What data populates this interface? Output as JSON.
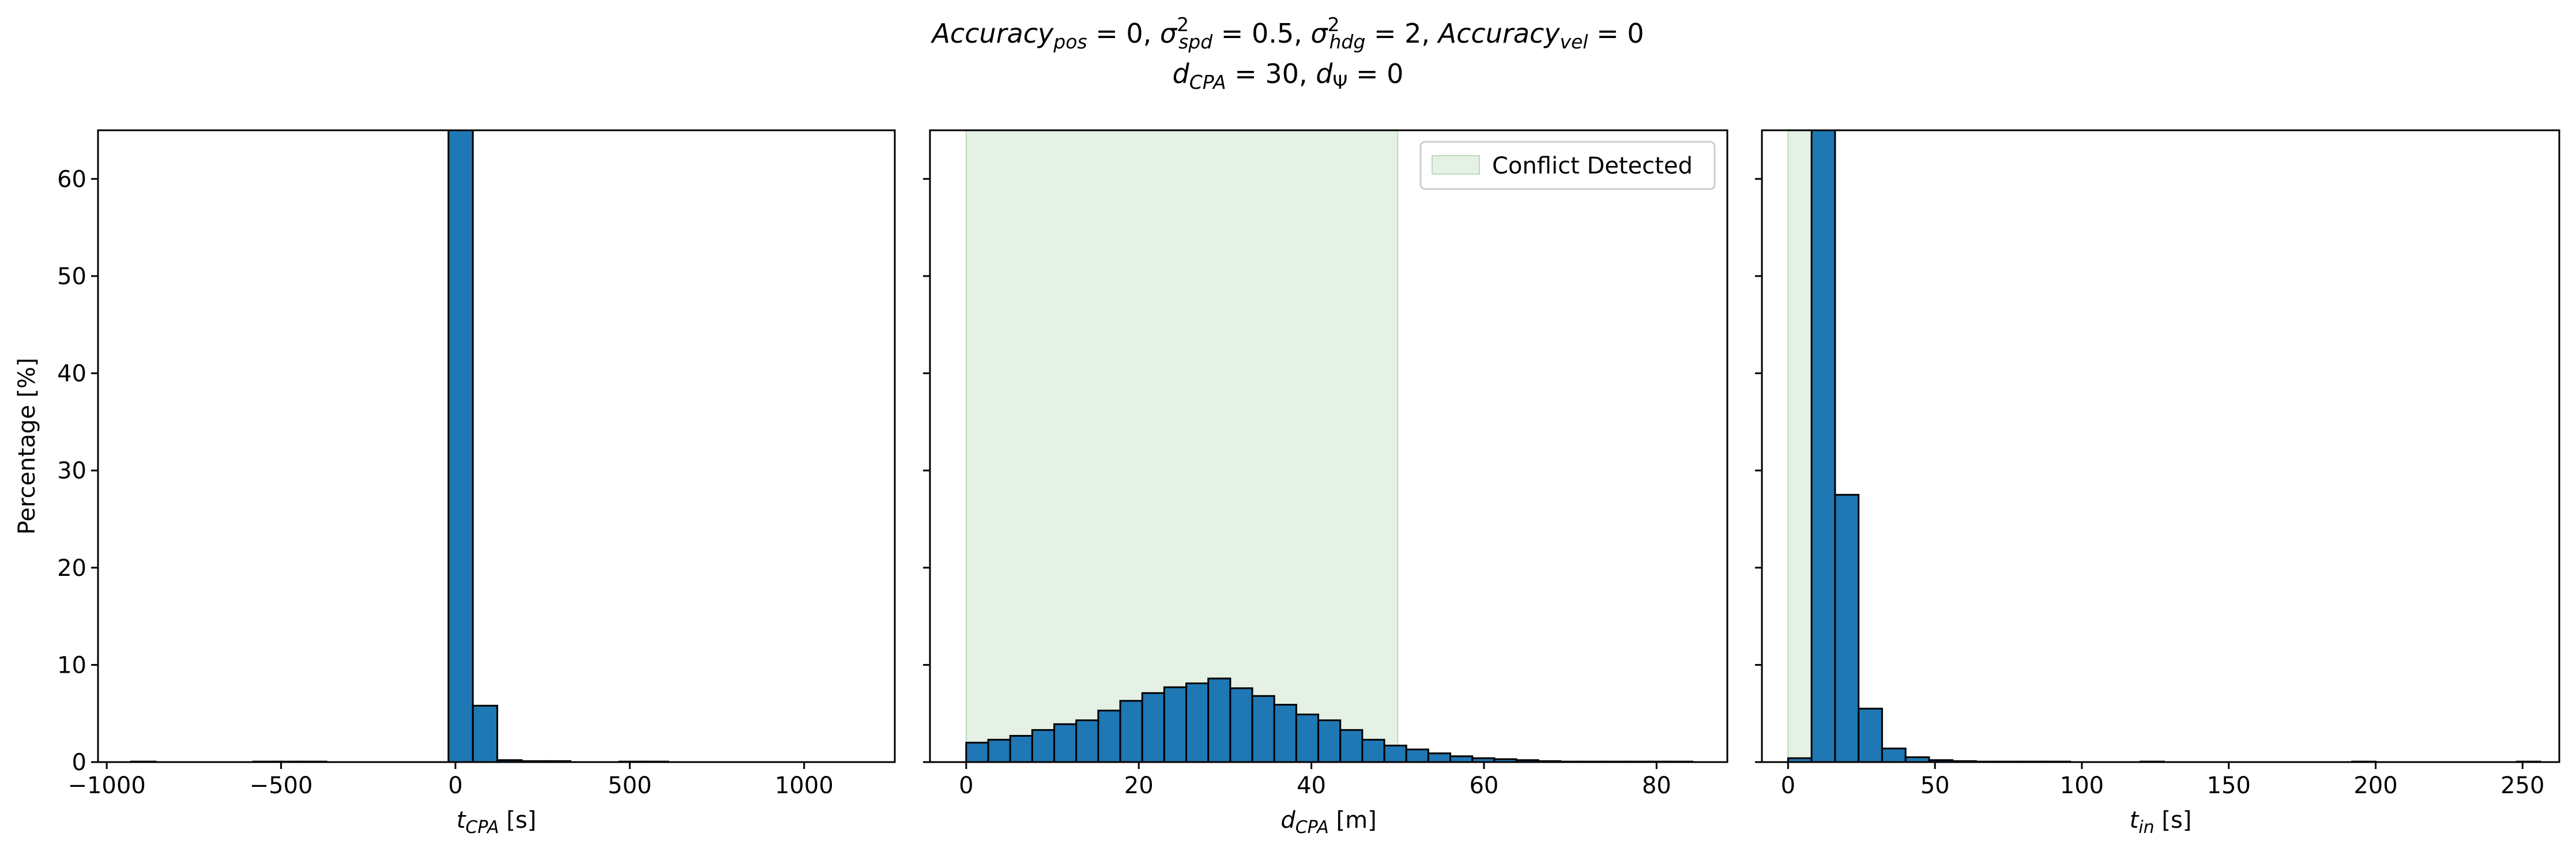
{
  "figure": {
    "title_line1": "Accuracy_pos = 0, σ²_spd = 0.5, σ²_hdg = 2, Accuracy_vel = 0",
    "title_line2": "d_CPA = 30, d_Ψ = 0"
  },
  "colors": {
    "bar_fill": "#1f77b4",
    "bar_edge": "#000000",
    "conflict_fill": "#e4f1e4",
    "conflict_edge": "#b9dcb9"
  },
  "chart_data": [
    {
      "type": "bar",
      "xlabel": "t_CPA [s]",
      "ylabel": "Percentage [%]",
      "xlim": [
        -1025,
        1260
      ],
      "ylim": [
        0,
        65
      ],
      "xticks": [
        -1000,
        -500,
        0,
        500,
        1000
      ],
      "xtick_labels": [
        "−1000",
        "−500",
        "0",
        "500",
        "1000"
      ],
      "yticks": [
        0,
        10,
        20,
        30,
        40,
        50,
        60
      ],
      "ytick_labels": [
        "0",
        "10",
        "20",
        "30",
        "40",
        "50",
        "60"
      ],
      "bin_start": -930,
      "bin_width": 70,
      "values": [
        0.05,
        0,
        0,
        0,
        0,
        0.05,
        0.05,
        0.05,
        0,
        0,
        0,
        0,
        0,
        100,
        5.8,
        0.2,
        0.1,
        0.1,
        0,
        0,
        0.05,
        0.05,
        0,
        0,
        0,
        0,
        0,
        0,
        0,
        0,
        0,
        0,
        0.05
      ],
      "grid": false
    },
    {
      "type": "bar",
      "xlabel": "d_CPA [m]",
      "ylabel": "",
      "xlim": [
        -4.2,
        88.2
      ],
      "ylim": [
        0,
        65
      ],
      "xticks": [
        0,
        20,
        40,
        60,
        80
      ],
      "xtick_labels": [
        "0",
        "20",
        "40",
        "60",
        "80"
      ],
      "yticks": [
        0,
        10,
        20,
        30,
        40,
        50,
        60
      ],
      "bin_start": 0,
      "bin_width": 2.55,
      "values": [
        2.0,
        2.3,
        2.7,
        3.3,
        3.9,
        4.3,
        5.3,
        6.3,
        7.1,
        7.7,
        8.1,
        8.6,
        7.6,
        6.8,
        5.9,
        4.9,
        4.3,
        3.3,
        2.3,
        1.7,
        1.3,
        0.9,
        0.6,
        0.4,
        0.3,
        0.2,
        0.1,
        0.05,
        0.05,
        0.05,
        0.05,
        0.05,
        0.05
      ],
      "conflict_region": [
        0,
        50
      ],
      "legend": {
        "entries": [
          "Conflict Detected"
        ],
        "placement": "upper right"
      },
      "grid": false
    },
    {
      "type": "bar",
      "xlabel": "t_in [s]",
      "ylabel": "",
      "xlim": [
        -8.9,
        262.5
      ],
      "ylim": [
        0,
        65
      ],
      "xticks": [
        0,
        50,
        100,
        150,
        200,
        250
      ],
      "xtick_labels": [
        "0",
        "50",
        "100",
        "150",
        "200",
        "250"
      ],
      "yticks": [
        0,
        10,
        20,
        30,
        40,
        50,
        60
      ],
      "bin_start": 0,
      "bin_width": 8,
      "values": [
        0.4,
        100,
        27.5,
        5.5,
        1.4,
        0.5,
        0.2,
        0.1,
        0.05,
        0.05,
        0.05,
        0.05,
        0,
        0,
        0,
        0.05,
        0,
        0,
        0,
        0,
        0,
        0,
        0,
        0,
        0.05,
        0,
        0,
        0,
        0,
        0,
        0,
        0.05
      ],
      "conflict_region": [
        0,
        10
      ],
      "grid": false
    }
  ]
}
